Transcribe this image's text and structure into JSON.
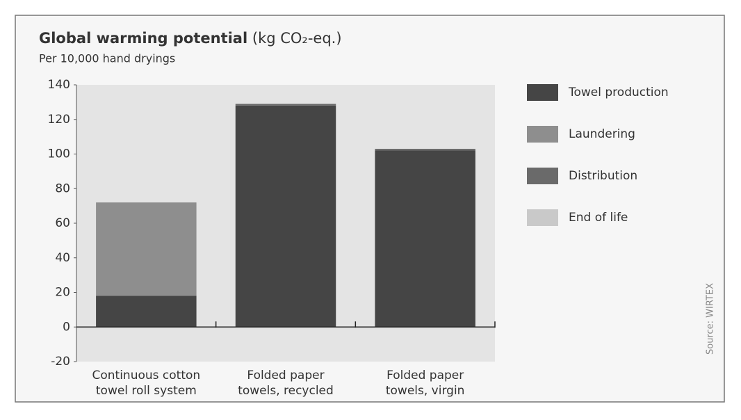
{
  "chart_data": {
    "type": "stacked_bar",
    "title": "Global warming potential",
    "title_unit": "(kg CO₂-eq.)",
    "subtitle": "Per 10,000 hand dryings",
    "source": "Source: WIRTEX",
    "categories": [
      "Continuous cotton\ntowel roll system",
      "Folded paper\ntowels, recycled",
      "Folded paper\ntowels, virgin"
    ],
    "series": [
      {
        "name": "Towel production",
        "color": "#454545",
        "values": [
          18,
          128,
          102
        ]
      },
      {
        "name": "Laundering",
        "color": "#8e8e8e",
        "values": [
          54,
          0,
          0
        ]
      },
      {
        "name": "Distribution",
        "color": "#6a6a6a",
        "values": [
          0,
          1,
          1
        ]
      },
      {
        "name": "End of life",
        "color": "#c9c9c9",
        "values": [
          0,
          0,
          0
        ]
      }
    ],
    "ylim": [
      -20,
      140
    ],
    "yticks": [
      -20,
      0,
      20,
      40,
      60,
      80,
      100,
      120,
      140
    ],
    "legend": "right"
  }
}
